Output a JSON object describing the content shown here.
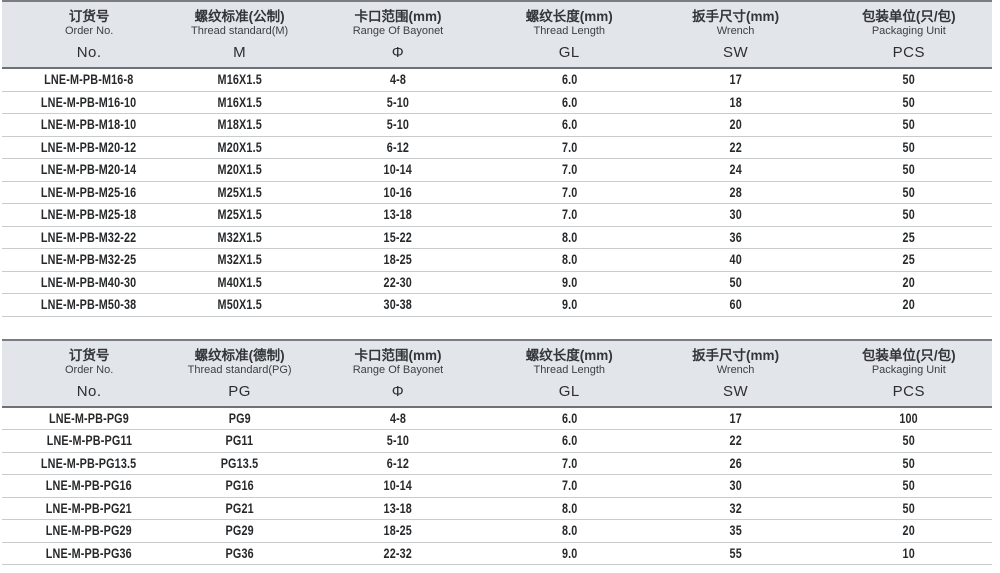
{
  "colors": {
    "header_bg": "#e2e5ea",
    "header_top_border": "#797c80",
    "header_bottom_border": "#6e7276",
    "row_border": "#c9cccf",
    "text": "#26282a"
  },
  "tables": [
    {
      "name": "metric-thread-table",
      "columns": [
        {
          "zh": "订货号",
          "en": "Order No.",
          "code": "No."
        },
        {
          "zh": "螺纹标准(公制)",
          "en": "Thread standard(M)",
          "code": "M"
        },
        {
          "zh": "卡口范围(mm)",
          "en": "Range Of Bayonet",
          "code": "Φ"
        },
        {
          "zh": "螺纹长度(mm)",
          "en": "Thread Length",
          "code": "GL"
        },
        {
          "zh": "扳手尺寸(mm)",
          "en": "Wrench",
          "code": "SW"
        },
        {
          "zh": "包装单位(只/包)",
          "en": "Packaging Unit",
          "code": "PCS"
        }
      ],
      "rows": [
        [
          "LNE-M-PB-M16-8",
          "M16X1.5",
          "4-8",
          "6.0",
          "17",
          "50"
        ],
        [
          "LNE-M-PB-M16-10",
          "M16X1.5",
          "5-10",
          "6.0",
          "18",
          "50"
        ],
        [
          "LNE-M-PB-M18-10",
          "M18X1.5",
          "5-10",
          "6.0",
          "20",
          "50"
        ],
        [
          "LNE-M-PB-M20-12",
          "M20X1.5",
          "6-12",
          "7.0",
          "22",
          "50"
        ],
        [
          "LNE-M-PB-M20-14",
          "M20X1.5",
          "10-14",
          "7.0",
          "24",
          "50"
        ],
        [
          "LNE-M-PB-M25-16",
          "M25X1.5",
          "10-16",
          "7.0",
          "28",
          "50"
        ],
        [
          "LNE-M-PB-M25-18",
          "M25X1.5",
          "13-18",
          "7.0",
          "30",
          "50"
        ],
        [
          "LNE-M-PB-M32-22",
          "M32X1.5",
          "15-22",
          "8.0",
          "36",
          "25"
        ],
        [
          "LNE-M-PB-M32-25",
          "M32X1.5",
          "18-25",
          "8.0",
          "40",
          "25"
        ],
        [
          "LNE-M-PB-M40-30",
          "M40X1.5",
          "22-30",
          "9.0",
          "50",
          "20"
        ],
        [
          "LNE-M-PB-M50-38",
          "M50X1.5",
          "30-38",
          "9.0",
          "60",
          "20"
        ]
      ]
    },
    {
      "name": "pg-thread-table",
      "columns": [
        {
          "zh": "订货号",
          "en": "Order No.",
          "code": "No."
        },
        {
          "zh": "螺纹标准(德制)",
          "en": "Thread standard(PG)",
          "code": "PG"
        },
        {
          "zh": "卡口范围(mm)",
          "en": "Range Of Bayonet",
          "code": "Φ"
        },
        {
          "zh": "螺纹长度(mm)",
          "en": "Thread Length",
          "code": "GL"
        },
        {
          "zh": "扳手尺寸(mm)",
          "en": "Wrench",
          "code": "SW"
        },
        {
          "zh": "包装单位(只/包)",
          "en": "Packaging Unit",
          "code": "PCS"
        }
      ],
      "rows": [
        [
          "LNE-M-PB-PG9",
          "PG9",
          "4-8",
          "6.0",
          "17",
          "100"
        ],
        [
          "LNE-M-PB-PG11",
          "PG11",
          "5-10",
          "6.0",
          "22",
          "50"
        ],
        [
          "LNE-M-PB-PG13.5",
          "PG13.5",
          "6-12",
          "7.0",
          "26",
          "50"
        ],
        [
          "LNE-M-PB-PG16",
          "PG16",
          "10-14",
          "7.0",
          "30",
          "50"
        ],
        [
          "LNE-M-PB-PG21",
          "PG21",
          "13-18",
          "8.0",
          "32",
          "50"
        ],
        [
          "LNE-M-PB-PG29",
          "PG29",
          "18-25",
          "8.0",
          "35",
          "20"
        ],
        [
          "LNE-M-PB-PG36",
          "PG36",
          "22-32",
          "9.0",
          "55",
          "10"
        ]
      ]
    }
  ]
}
